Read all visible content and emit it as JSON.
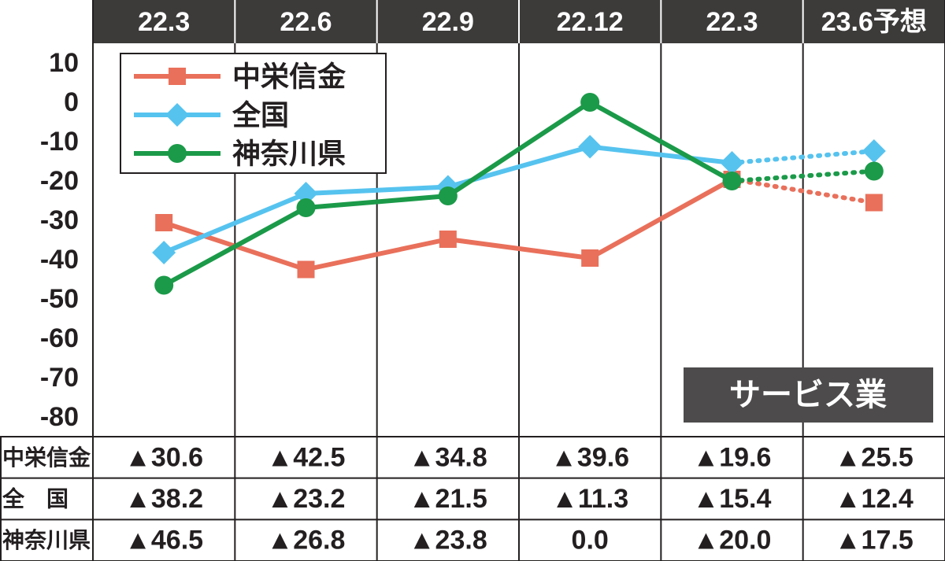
{
  "chart_data": {
    "type": "line",
    "categories": [
      "22.3",
      "22.6",
      "22.9",
      "22.12",
      "22.3",
      "23.6予想"
    ],
    "forecast_index": 5,
    "annotation": "サービス業",
    "ylim": [
      -85,
      15
    ],
    "yticks": [
      10,
      0,
      -10,
      -20,
      -30,
      -40,
      -50,
      -60,
      -70,
      -80
    ],
    "grid": true,
    "legend": "top-left",
    "series": [
      {
        "name": "中栄信金",
        "color": "#e9705b",
        "marker": "square",
        "values": [
          -30.6,
          -42.5,
          -34.8,
          -39.6,
          -19.6,
          -25.5
        ],
        "value_labels": [
          "▲30.6",
          "▲42.5",
          "▲34.8",
          "▲39.6",
          "▲19.6",
          "▲25.5"
        ]
      },
      {
        "name": "全国",
        "color": "#56c3ef",
        "marker": "diamond",
        "values": [
          -38.2,
          -23.2,
          -21.5,
          -11.3,
          -15.4,
          -12.4
        ],
        "value_labels": [
          "▲38.2",
          "▲23.2",
          "▲21.5",
          "▲11.3",
          "▲15.4",
          "▲12.4"
        ]
      },
      {
        "name": "神奈川県",
        "color": "#1b9a49",
        "marker": "circle",
        "values": [
          -46.5,
          -26.8,
          -23.8,
          0,
          -20.0,
          -17.5
        ],
        "value_labels": [
          "▲46.5",
          "▲26.8",
          "▲23.8",
          "0.0",
          "▲20.0",
          "▲17.5"
        ]
      }
    ]
  }
}
